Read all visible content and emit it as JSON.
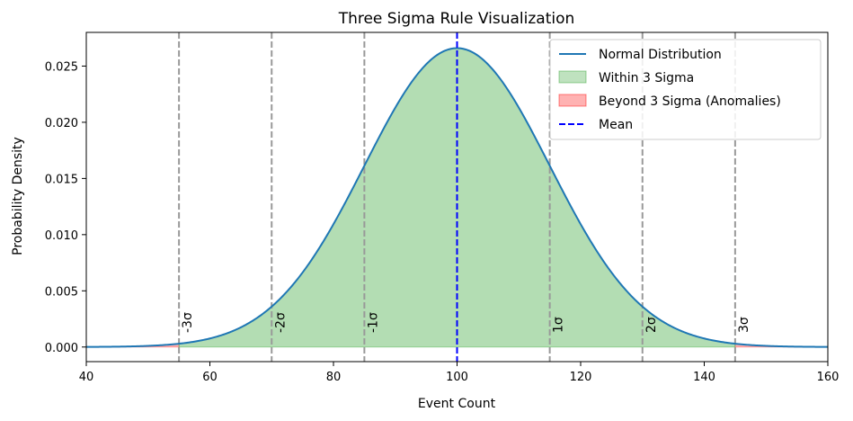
{
  "chart_data": {
    "type": "area",
    "title": "Three Sigma Rule Visualization",
    "xlabel": "Event Count",
    "ylabel": "Probability Density",
    "xlim": [
      40,
      160
    ],
    "ylim": [
      -0.0013,
      0.028
    ],
    "xticks": [
      40,
      60,
      80,
      100,
      120,
      140,
      160
    ],
    "yticks": [
      0.0,
      0.005,
      0.01,
      0.015,
      0.02,
      0.025
    ],
    "ytick_labels": [
      "0.000",
      "0.005",
      "0.010",
      "0.015",
      "0.020",
      "0.025"
    ],
    "distribution": {
      "mean": 100,
      "std": 15
    },
    "series": [
      {
        "name": "Normal Distribution",
        "kind": "line",
        "color": "#1f77b4"
      },
      {
        "name": "Within 3 Sigma",
        "kind": "fill",
        "color": "#2ca02c",
        "range": [
          55,
          145
        ]
      },
      {
        "name": "Beyond 3 Sigma (Anomalies)",
        "kind": "fill",
        "color": "#ff0000",
        "range": [
          [
            40,
            55
          ],
          [
            145,
            160
          ]
        ]
      },
      {
        "name": "Mean",
        "kind": "vline",
        "color": "#0000ff",
        "x": 100
      }
    ],
    "sigma_lines": [
      {
        "x": 55,
        "label": "-3σ"
      },
      {
        "x": 70,
        "label": "-2σ"
      },
      {
        "x": 85,
        "label": "-1σ"
      },
      {
        "x": 115,
        "label": "1σ"
      },
      {
        "x": 130,
        "label": "2σ"
      },
      {
        "x": 145,
        "label": "3σ"
      }
    ],
    "legend_position": "upper right",
    "grid": false
  }
}
